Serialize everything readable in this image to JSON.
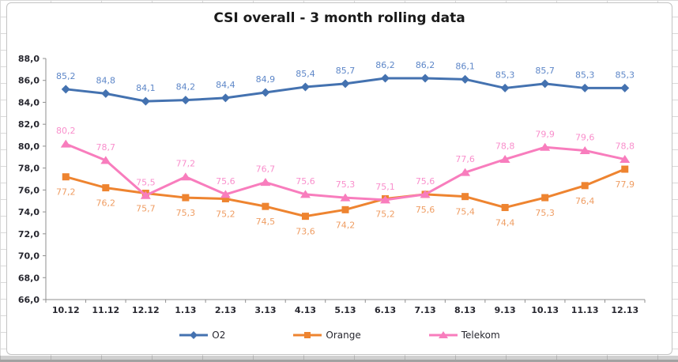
{
  "chart_data": {
    "type": "line",
    "title": "CSI overall - 3 month rolling data",
    "categories": [
      "10.12",
      "11.12",
      "12.12",
      "1.13",
      "2.13",
      "3.13",
      "4.13",
      "5.13",
      "6.13",
      "7.13",
      "8.13",
      "9.13",
      "10.13",
      "11.13",
      "12.13"
    ],
    "series": [
      {
        "name": "O2",
        "marker": "diamond",
        "color": "#4472B0",
        "label_color": "#5E87C8",
        "label_position": "above",
        "values": [
          85.2,
          84.8,
          84.1,
          84.2,
          84.4,
          84.9,
          85.4,
          85.7,
          86.2,
          86.2,
          86.1,
          85.3,
          85.7,
          85.3,
          85.3
        ],
        "labels": [
          "85,2",
          "84,8",
          "84,1",
          "84,2",
          "84,4",
          "84,9",
          "85,4",
          "85,7",
          "86,2",
          "86,2",
          "86,1",
          "85,3",
          "85,7",
          "85,3",
          "85,3"
        ]
      },
      {
        "name": "Orange",
        "marker": "square",
        "color": "#EE8430",
        "label_color": "#EF9D63",
        "label_position": "below",
        "values": [
          77.2,
          76.2,
          75.7,
          75.3,
          75.2,
          74.5,
          73.6,
          74.2,
          75.2,
          75.6,
          75.4,
          74.4,
          75.3,
          76.4,
          77.9
        ],
        "labels": [
          "77,2",
          "76,2",
          "75,7",
          "75,3",
          "75,2",
          "74,5",
          "73,6",
          "74,2",
          "75,2",
          "75,6",
          "75,4",
          "74,4",
          "75,3",
          "76,4",
          "77,9"
        ]
      },
      {
        "name": "Telekom",
        "marker": "triangle",
        "color": "#F87DBD",
        "label_color": "#F98FCC",
        "label_position": "above",
        "values": [
          80.2,
          78.7,
          75.5,
          77.2,
          75.6,
          76.7,
          75.6,
          75.3,
          75.1,
          75.6,
          77.6,
          78.8,
          79.9,
          79.6,
          78.8
        ],
        "labels": [
          "80,2",
          "78,7",
          "75,5",
          "77,2",
          "75,6",
          "76,7",
          "75,6",
          "75,3",
          "75,1",
          "75,6",
          "77,6",
          "78,8",
          "79,9",
          "79,6",
          "78,8"
        ]
      }
    ],
    "ylim": [
      66,
      88
    ],
    "ytick_step": 2,
    "ytick_labels": [
      "88,0",
      "86,0",
      "84,0",
      "82,0",
      "80,0",
      "78,0",
      "76,0",
      "74,0",
      "72,0",
      "70,0",
      "68,0",
      "66,0"
    ],
    "grid": false,
    "legend_position": "bottom",
    "axis_color": "#8F8F8F",
    "tick_label_color": "#27272F"
  }
}
